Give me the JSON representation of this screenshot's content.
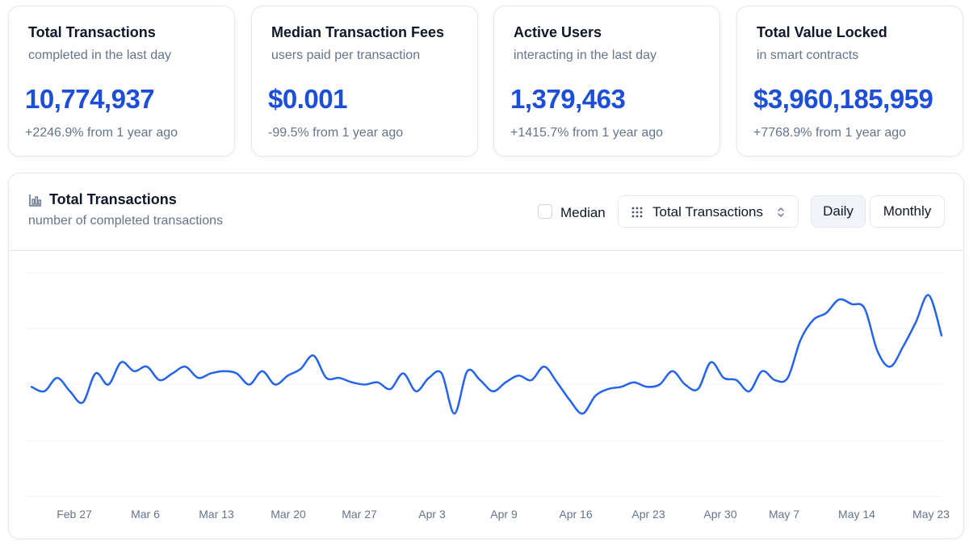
{
  "stats": [
    {
      "title": "Total Transactions",
      "subtitle": "completed in the last day",
      "value": "10,774,937",
      "change": "+2246.9% from 1 year ago"
    },
    {
      "title": "Median Transaction Fees",
      "subtitle": "users paid per transaction",
      "value": "$0.001",
      "change": "-99.5% from 1 year ago"
    },
    {
      "title": "Active Users",
      "subtitle": "interacting in the last day",
      "value": "1,379,463",
      "change": "+1415.7% from 1 year ago"
    },
    {
      "title": "Total Value Locked",
      "subtitle": "in smart contracts",
      "value": "$3,960,185,959",
      "change": "+7768.9% from 1 year ago"
    }
  ],
  "chart_panel": {
    "icon": "bar-chart-icon",
    "title": "Total Transactions",
    "subtitle": "number of completed transactions",
    "median_label": "Median",
    "median_checked": false,
    "metric_select": {
      "icon": "grip-dots-icon",
      "value": "Total Transactions"
    },
    "period_buttons": {
      "daily": "Daily",
      "monthly": "Monthly",
      "active": "daily"
    }
  },
  "colors": {
    "accent": "#1d4ed8",
    "line": "#2563eb",
    "muted": "#64748b",
    "border": "#e2e8f0"
  },
  "chart_data": {
    "type": "line",
    "title": "",
    "xlabel": "",
    "ylabel": "",
    "grid": true,
    "y_ticks_visible": false,
    "x_tick_labels": [
      "Feb 27",
      "Mar 6",
      "Mar 13",
      "Mar 20",
      "Mar 27",
      "Apr 3",
      "Apr 9",
      "Apr 16",
      "Apr 23",
      "Apr 30",
      "May 7",
      "May 14",
      "May 23"
    ],
    "ylim": [
      0,
      1
    ],
    "series": [
      {
        "values": [
          0.49,
          0.47,
          0.53,
          0.47,
          0.42,
          0.55,
          0.5,
          0.6,
          0.56,
          0.58,
          0.52,
          0.55,
          0.58,
          0.53,
          0.55,
          0.56,
          0.55,
          0.5,
          0.56,
          0.5,
          0.54,
          0.57,
          0.63,
          0.53,
          0.53,
          0.51,
          0.5,
          0.51,
          0.48,
          0.55,
          0.47,
          0.53,
          0.55,
          0.37,
          0.56,
          0.52,
          0.47,
          0.51,
          0.54,
          0.52,
          0.58,
          0.51,
          0.43,
          0.37,
          0.45,
          0.48,
          0.49,
          0.51,
          0.49,
          0.5,
          0.56,
          0.5,
          0.48,
          0.6,
          0.53,
          0.52,
          0.47,
          0.56,
          0.52,
          0.53,
          0.7,
          0.79,
          0.82,
          0.88,
          0.86,
          0.84,
          0.65,
          0.58,
          0.67,
          0.78,
          0.9,
          0.72
        ]
      }
    ]
  }
}
